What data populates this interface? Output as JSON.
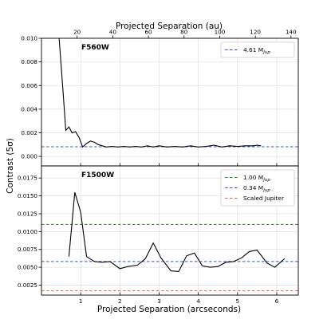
{
  "chart_data": {
    "type": "line",
    "xlabel": "Projected Separation (arcseconds)",
    "ylabel": "Contrast (5σ)",
    "top_axis": {
      "label": "Projected Separation (au)",
      "ticks": [
        20,
        40,
        60,
        80,
        100,
        120,
        140
      ],
      "au_per_arcsec": 22.0
    },
    "xlim": [
      0.0,
      6.55
    ],
    "xticks": [
      1,
      2,
      3,
      4,
      5,
      6
    ],
    "grid": true,
    "legend_placement": "top-right",
    "panels": [
      {
        "name": "F560W",
        "ylim": [
          -0.0008,
          0.01
        ],
        "yticks": [
          0.0,
          0.002,
          0.004,
          0.006,
          0.008,
          0.01
        ],
        "yticklabels": [
          "0.000",
          "0.002",
          "0.004",
          "0.006",
          "0.008",
          "0.010"
        ],
        "hlines": [
          {
            "label": "4.61 M",
            "sub": "Jup",
            "y": 0.00082,
            "color": "#3b4fd6"
          }
        ],
        "curve": {
          "color": "#000000",
          "x": [
            0.45,
            0.55,
            0.62,
            0.7,
            0.78,
            0.87,
            0.96,
            1.05,
            1.15,
            1.25,
            1.35,
            1.45,
            1.55,
            1.65,
            1.8,
            1.95,
            2.1,
            2.25,
            2.4,
            2.55,
            2.7,
            2.85,
            3.0,
            3.2,
            3.4,
            3.6,
            3.8,
            4.0,
            4.2,
            4.4,
            4.6,
            4.8,
            5.0,
            5.2,
            5.4,
            5.5,
            5.6
          ],
          "y": [
            0.01,
            0.0055,
            0.0022,
            0.0025,
            0.002,
            0.0021,
            0.0016,
            0.0008,
            0.0011,
            0.0013,
            0.0012,
            0.001,
            0.0009,
            0.0008,
            0.00085,
            0.0008,
            0.00085,
            0.0008,
            0.00085,
            0.0008,
            0.0009,
            0.0008,
            0.0009,
            0.0008,
            0.00085,
            0.0008,
            0.0009,
            0.0008,
            0.00085,
            0.00095,
            0.0008,
            0.0009,
            0.00085,
            0.0009,
            0.0009,
            0.00095,
            0.0009
          ]
        }
      },
      {
        "name": "F1500W",
        "ylim": [
          0.0011,
          0.0192
        ],
        "yticks": [
          0.0025,
          0.005,
          0.0075,
          0.01,
          0.0125,
          0.015,
          0.0175
        ],
        "yticklabels": [
          "0.0025",
          "0.0050",
          "0.0075",
          "0.0100",
          "0.0125",
          "0.0150",
          "0.0175"
        ],
        "hlines": [
          {
            "label": "1.00 M",
            "sub": "Jup",
            "y": 0.011,
            "color": "#1e8a1e"
          },
          {
            "label": "0.34 M",
            "sub": "Jup",
            "y": 0.0058,
            "color": "#3b4fd6"
          },
          {
            "label": "Scaled Jupiter",
            "sub": "",
            "y": 0.0017,
            "color": "#e8613c"
          }
        ],
        "curve": {
          "color": "#000000",
          "x": [
            0.7,
            0.85,
            1.0,
            1.15,
            1.35,
            1.55,
            1.75,
            2.0,
            2.2,
            2.45,
            2.65,
            2.85,
            3.05,
            3.3,
            3.5,
            3.7,
            3.9,
            4.1,
            4.3,
            4.5,
            4.7,
            4.9,
            5.1,
            5.3,
            5.5,
            5.75,
            5.95,
            6.2
          ],
          "y": [
            0.0065,
            0.0155,
            0.0127,
            0.0065,
            0.0058,
            0.0057,
            0.0058,
            0.0048,
            0.0051,
            0.0053,
            0.0062,
            0.0084,
            0.0063,
            0.0045,
            0.0044,
            0.0066,
            0.007,
            0.0052,
            0.005,
            0.0051,
            0.0057,
            0.0058,
            0.0063,
            0.0072,
            0.0074,
            0.0056,
            0.005,
            0.0062
          ]
        }
      }
    ]
  }
}
